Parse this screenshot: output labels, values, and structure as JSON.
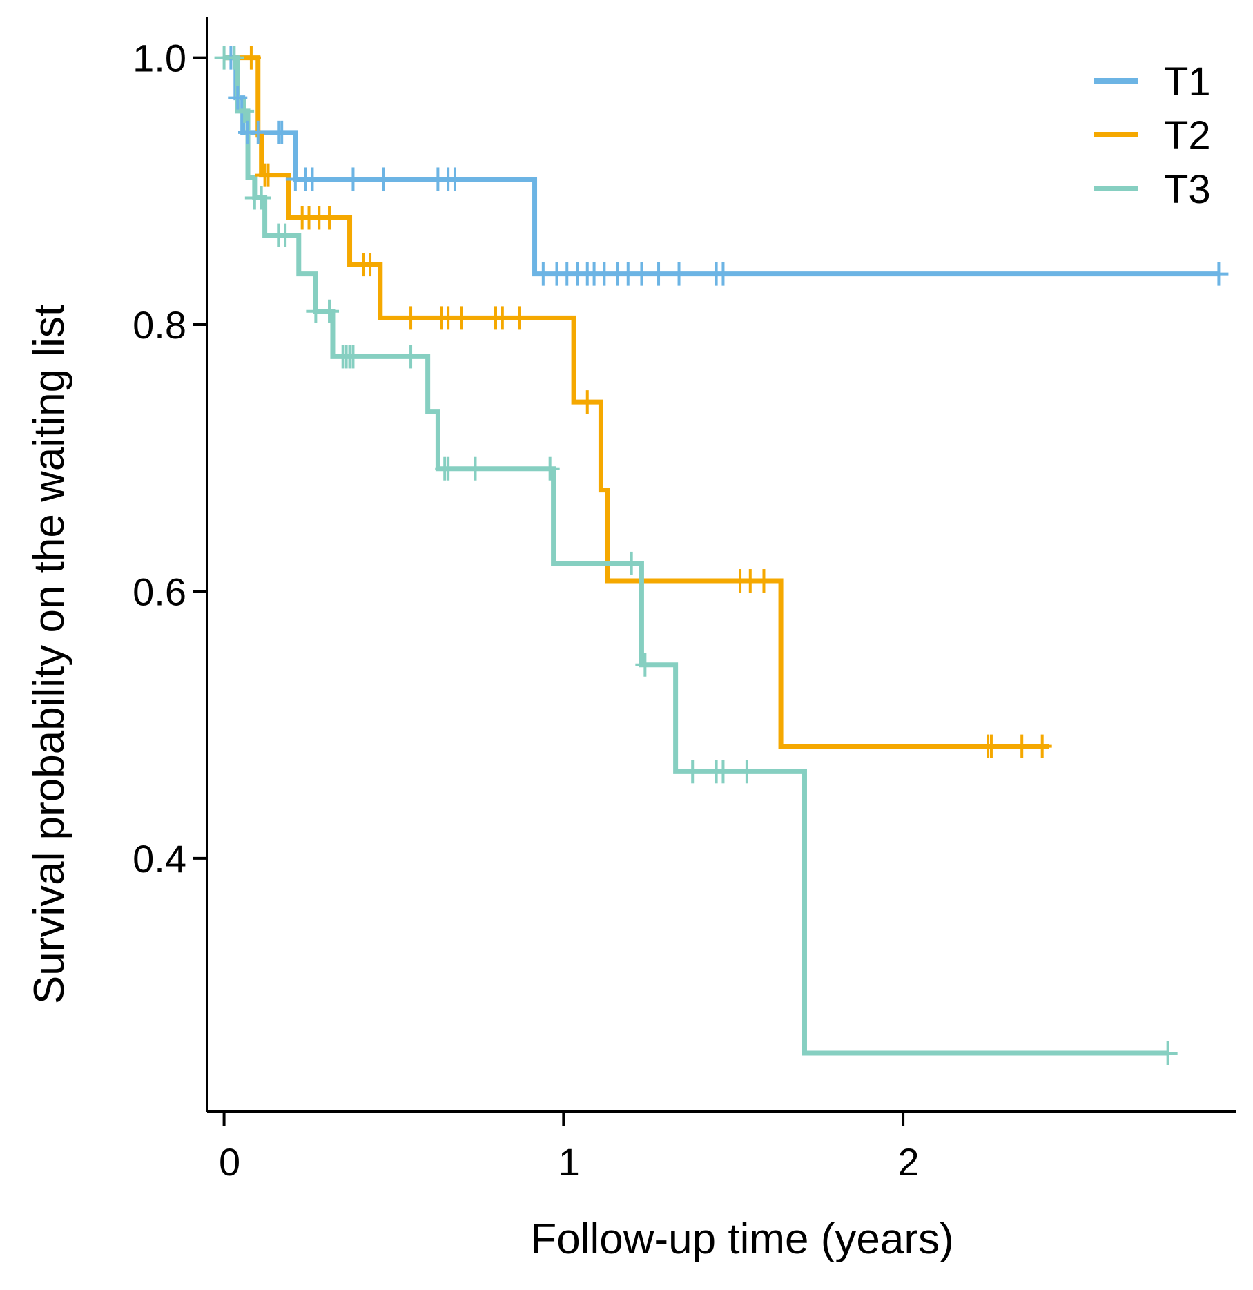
{
  "chart_data": {
    "type": "line",
    "subtype": "kaplan-meier step",
    "title": "",
    "xlabel": "Follow-up time (years)",
    "ylabel": "Survival probability on the waiting list",
    "xlim": [
      -0.05,
      2.98
    ],
    "ylim": [
      0.21,
      1.02
    ],
    "xticks": [
      0,
      1,
      2
    ],
    "xtick_labels": [
      "0",
      "1",
      "2"
    ],
    "yticks": [
      0.4,
      0.6,
      0.8,
      1.0
    ],
    "ytick_labels": [
      "0.4",
      "0.6",
      "0.8",
      "1.0"
    ],
    "grid": false,
    "legend_position": "top-right",
    "series": [
      {
        "name": "T1",
        "color": "#6cb4e4",
        "steps": [
          [
            0,
            1.0
          ],
          [
            0.035,
            0.97
          ],
          [
            0.055,
            0.944
          ],
          [
            0.21,
            0.909
          ],
          [
            0.915,
            0.838
          ],
          [
            2.93,
            0.838
          ]
        ],
        "censor_times": [
          0.02,
          0.04,
          0.07,
          0.1,
          0.16,
          0.17,
          0.21,
          0.24,
          0.26,
          0.38,
          0.47,
          0.63,
          0.66,
          0.68,
          0.94,
          0.98,
          1.01,
          1.04,
          1.07,
          1.09,
          1.12,
          1.16,
          1.19,
          1.23,
          1.28,
          1.34,
          1.45,
          1.47,
          2.93
        ]
      },
      {
        "name": "T2",
        "color": "#f5a800",
        "steps": [
          [
            0,
            1.0
          ],
          [
            0.1,
            0.942
          ],
          [
            0.11,
            0.912
          ],
          [
            0.19,
            0.88
          ],
          [
            0.37,
            0.845
          ],
          [
            0.46,
            0.805
          ],
          [
            1.03,
            0.742
          ],
          [
            1.11,
            0.676
          ],
          [
            1.13,
            0.608
          ],
          [
            1.64,
            0.484
          ],
          [
            2.43,
            0.484
          ]
        ],
        "censor_times": [
          0.08,
          0.12,
          0.13,
          0.23,
          0.25,
          0.28,
          0.31,
          0.41,
          0.43,
          0.55,
          0.64,
          0.66,
          0.7,
          0.8,
          0.82,
          0.87,
          1.07,
          1.52,
          1.55,
          1.59,
          2.25,
          2.26,
          2.35,
          2.41
        ]
      },
      {
        "name": "T3",
        "color": "#86cfc1",
        "steps": [
          [
            0,
            1.0
          ],
          [
            0.04,
            0.96
          ],
          [
            0.07,
            0.91
          ],
          [
            0.09,
            0.895
          ],
          [
            0.12,
            0.867
          ],
          [
            0.22,
            0.838
          ],
          [
            0.27,
            0.81
          ],
          [
            0.32,
            0.776
          ],
          [
            0.6,
            0.735
          ],
          [
            0.63,
            0.692
          ],
          [
            0.97,
            0.621
          ],
          [
            1.23,
            0.545
          ],
          [
            1.33,
            0.465
          ],
          [
            1.71,
            0.254
          ],
          [
            2.78,
            0.254
          ]
        ],
        "censor_times": [
          0.0,
          0.03,
          0.06,
          0.09,
          0.11,
          0.16,
          0.18,
          0.27,
          0.31,
          0.35,
          0.36,
          0.37,
          0.38,
          0.55,
          0.65,
          0.66,
          0.74,
          0.96,
          1.2,
          1.24,
          1.38,
          1.45,
          1.47,
          1.54,
          2.78
        ]
      }
    ]
  }
}
